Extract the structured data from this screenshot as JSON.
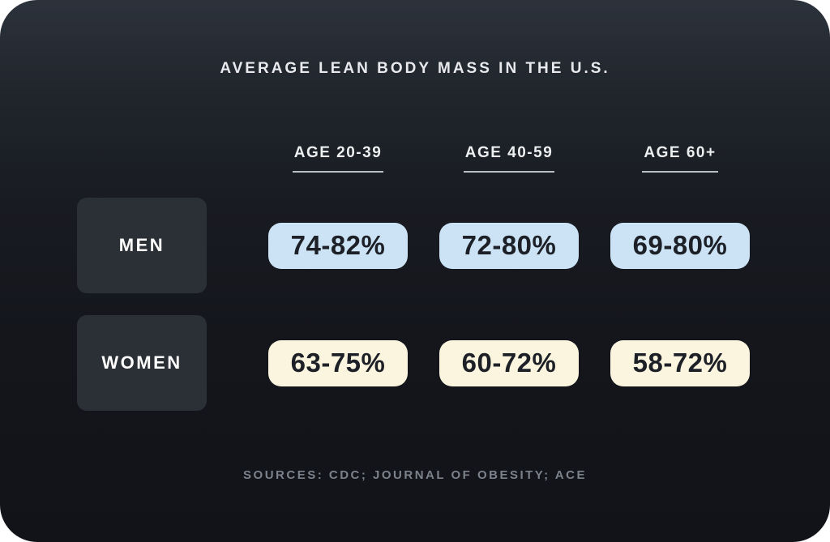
{
  "title": "AVERAGE LEAN BODY MASS IN THE U.S.",
  "table": {
    "column_headers": [
      "AGE 20-39",
      "AGE 40-59",
      "AGE 60+"
    ],
    "rows": [
      {
        "label": "MEN",
        "values": [
          "74-82%",
          "72-80%",
          "69-80%"
        ]
      },
      {
        "label": "WOMEN",
        "values": [
          "63-75%",
          "60-72%",
          "58-72%"
        ]
      }
    ]
  },
  "sources": "SOURCES: CDC; JOURNAL OF OBESITY; ACE",
  "colors": {
    "card_gradient_top": "#2c323b",
    "card_gradient_bottom": "#111319",
    "title_text": "#e8eaed",
    "header_text": "#eceef0",
    "header_underline": "#b9bec4",
    "label_box_bg": "#2b2f36",
    "label_text": "#ffffff",
    "men_pill_bg": "#cbe3f5",
    "women_pill_bg": "#fbf5df",
    "pill_text": "#1d2127",
    "sources_text": "#7c828b",
    "page_bg": "#ffffff"
  },
  "chart_data": {
    "type": "table",
    "title": "AVERAGE LEAN BODY MASS IN THE U.S.",
    "categories": [
      "AGE 20-39",
      "AGE 40-59",
      "AGE 60+"
    ],
    "series": [
      {
        "name": "MEN",
        "values": [
          "74-82%",
          "72-80%",
          "69-80%"
        ]
      },
      {
        "name": "WOMEN",
        "values": [
          "63-75%",
          "60-72%",
          "58-72%"
        ]
      }
    ],
    "annotations": [
      "SOURCES: CDC; JOURNAL OF OBESITY; ACE"
    ],
    "legend_position": "none",
    "grid": false
  }
}
